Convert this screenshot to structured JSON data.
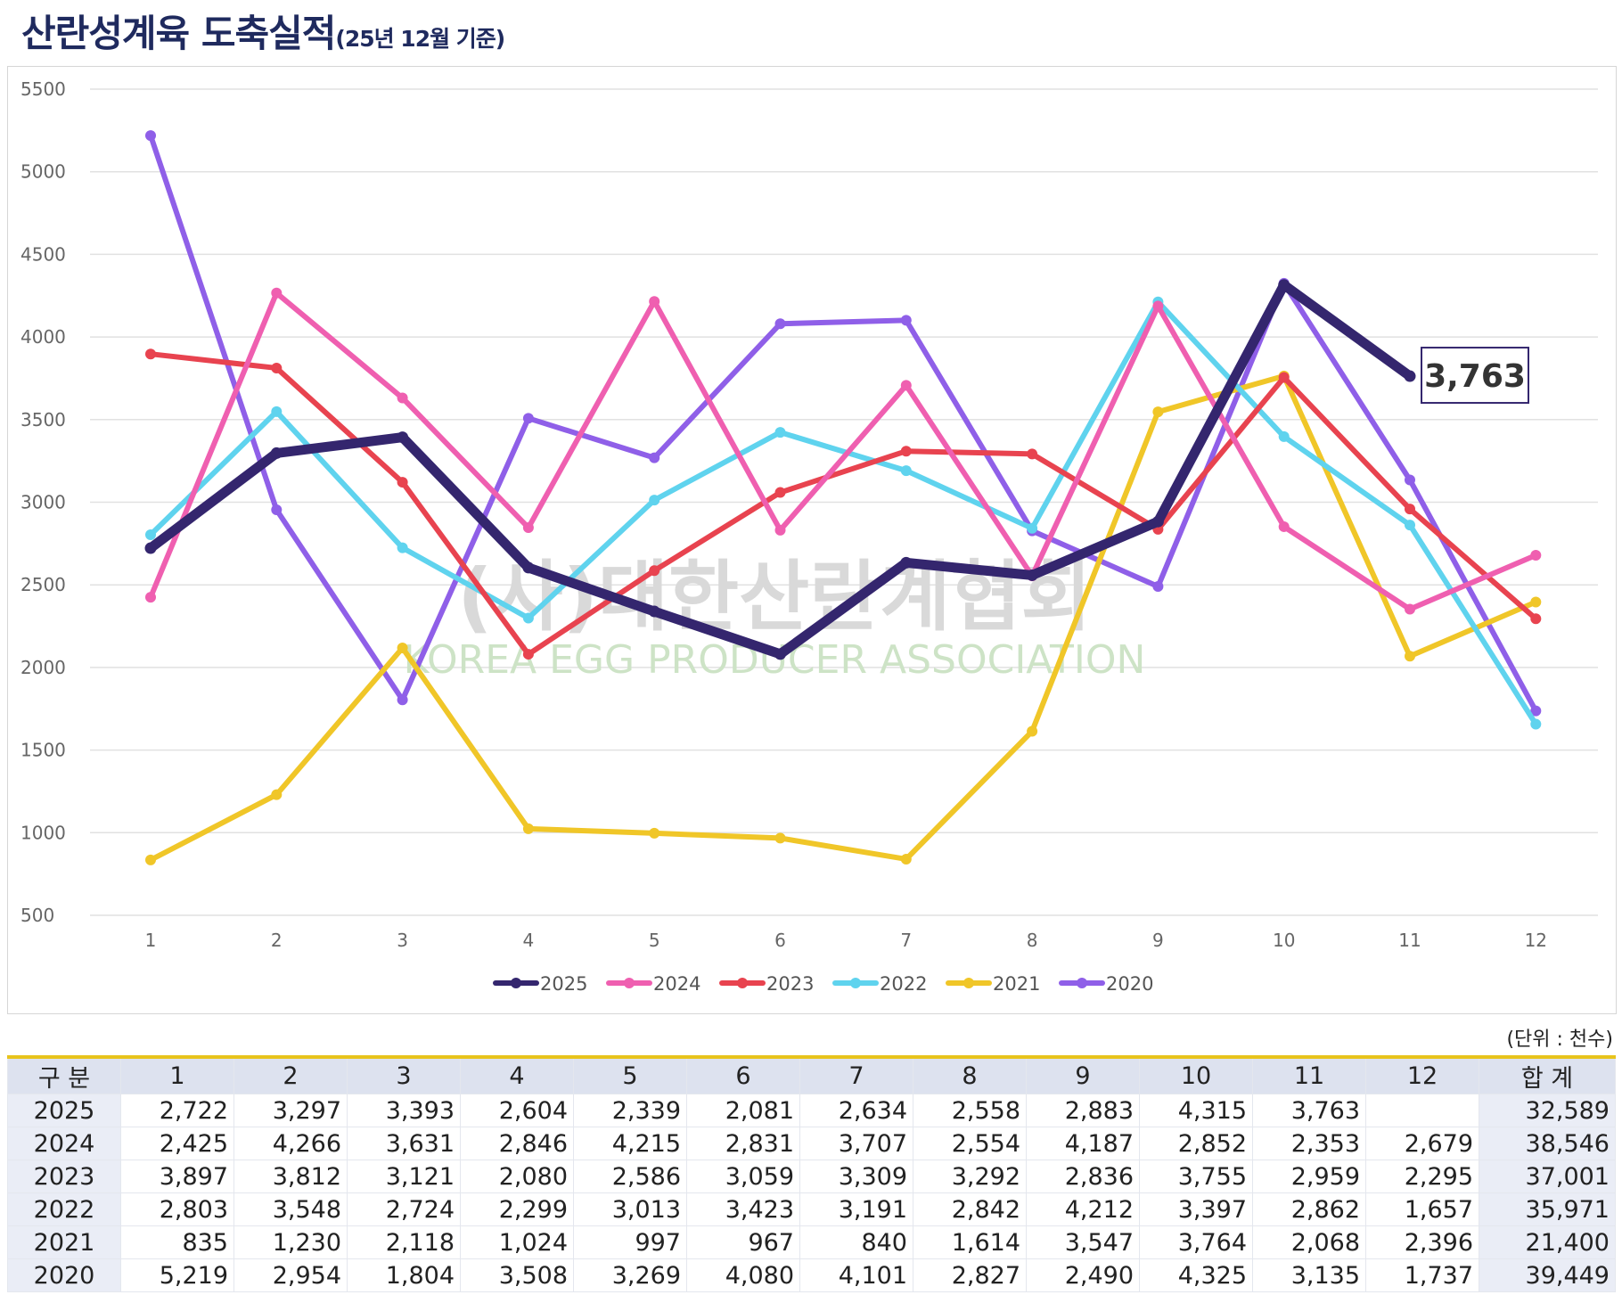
{
  "title": {
    "main": "산란성계육 도축실적",
    "sub": "(25년 12월 기준)"
  },
  "watermark": {
    "korean": "(사)대한산란계협회",
    "english": "KOREA EGG PRODUCER ASSOCIATION"
  },
  "callout": {
    "label": "3,763",
    "series": "2025",
    "month_index": 10
  },
  "unit_note": "(단위 : 천수)",
  "chart_data": {
    "type": "line",
    "title": "산란성계육 도축실적",
    "xlabel": "",
    "ylabel": "",
    "categories": [
      "1",
      "2",
      "3",
      "4",
      "5",
      "6",
      "7",
      "8",
      "9",
      "10",
      "11",
      "12"
    ],
    "ylim": [
      500,
      5500
    ],
    "yticks": [
      500,
      1000,
      1500,
      2000,
      2500,
      3000,
      3500,
      4000,
      4500,
      5000,
      5500
    ],
    "ytick_labels": [
      "500",
      "1000",
      "1500",
      "2000",
      "2500",
      "3000",
      "3500",
      "4000",
      "4500",
      "5000",
      "5500"
    ],
    "grid": true,
    "legend_position": "bottom",
    "series": [
      {
        "name": "2025",
        "color": "#34266e",
        "width": 11,
        "values": [
          2722,
          3297,
          3393,
          2604,
          2339,
          2081,
          2634,
          2558,
          2883,
          4315,
          3763,
          null
        ]
      },
      {
        "name": "2024",
        "color": "#ef5fb0",
        "width": 6,
        "values": [
          2425,
          4266,
          3631,
          2846,
          4215,
          2831,
          3707,
          2554,
          4187,
          2852,
          2353,
          2679
        ]
      },
      {
        "name": "2023",
        "color": "#e8434f",
        "width": 6,
        "values": [
          3897,
          3812,
          3121,
          2080,
          2586,
          3059,
          3309,
          3292,
          2836,
          3755,
          2959,
          2295
        ]
      },
      {
        "name": "2022",
        "color": "#5fd3ee",
        "width": 6,
        "values": [
          2803,
          3548,
          2724,
          2299,
          3013,
          3423,
          3191,
          2842,
          4212,
          3397,
          2862,
          1657
        ]
      },
      {
        "name": "2021",
        "color": "#f0c628",
        "width": 6,
        "values": [
          835,
          1230,
          2118,
          1024,
          997,
          967,
          840,
          1614,
          3547,
          3764,
          2068,
          2396
        ]
      },
      {
        "name": "2020",
        "color": "#8f5fe8",
        "width": 6,
        "values": [
          5219,
          2954,
          1804,
          3508,
          3269,
          4080,
          4101,
          2827,
          2490,
          4325,
          3135,
          1737
        ]
      }
    ]
  },
  "table": {
    "headers": [
      "구 분",
      "1",
      "2",
      "3",
      "4",
      "5",
      "6",
      "7",
      "8",
      "9",
      "10",
      "11",
      "12",
      "합 계"
    ],
    "rows": [
      {
        "year": "2025",
        "cells": [
          "2,722",
          "3,297",
          "3,393",
          "2,604",
          "2,339",
          "2,081",
          "2,634",
          "2,558",
          "2,883",
          "4,315",
          "3,763",
          ""
        ],
        "total": "32,589"
      },
      {
        "year": "2024",
        "cells": [
          "2,425",
          "4,266",
          "3,631",
          "2,846",
          "4,215",
          "2,831",
          "3,707",
          "2,554",
          "4,187",
          "2,852",
          "2,353",
          "2,679"
        ],
        "total": "38,546"
      },
      {
        "year": "2023",
        "cells": [
          "3,897",
          "3,812",
          "3,121",
          "2,080",
          "2,586",
          "3,059",
          "3,309",
          "3,292",
          "2,836",
          "3,755",
          "2,959",
          "2,295"
        ],
        "total": "37,001"
      },
      {
        "year": "2022",
        "cells": [
          "2,803",
          "3,548",
          "2,724",
          "2,299",
          "3,013",
          "3,423",
          "3,191",
          "2,842",
          "4,212",
          "3,397",
          "2,862",
          "1,657"
        ],
        "total": "35,971"
      },
      {
        "year": "2021",
        "cells": [
          "835",
          "1,230",
          "2,118",
          "1,024",
          "997",
          "967",
          "840",
          "1,614",
          "3,547",
          "3,764",
          "2,068",
          "2,396"
        ],
        "total": "21,400"
      },
      {
        "year": "2020",
        "cells": [
          "5,219",
          "2,954",
          "1,804",
          "3,508",
          "3,269",
          "4,080",
          "4,101",
          "2,827",
          "2,490",
          "4,325",
          "3,135",
          "1,737"
        ],
        "total": "39,449"
      }
    ]
  }
}
